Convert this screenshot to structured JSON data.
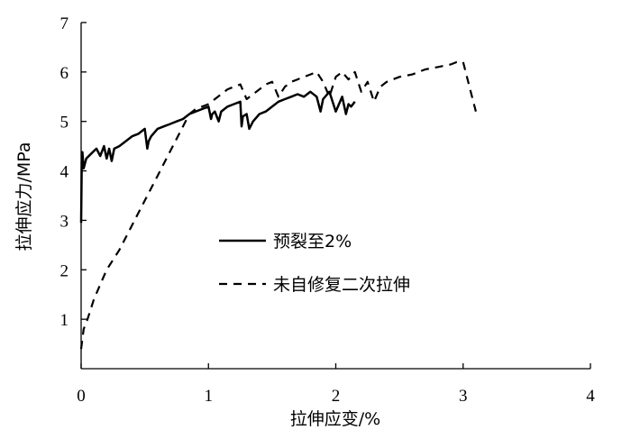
{
  "chart_data": {
    "type": "line",
    "title": "",
    "xlabel": "拉伸应变/%",
    "ylabel": "拉伸应力/MPa",
    "xlim": [
      0,
      4
    ],
    "ylim": [
      0,
      7
    ],
    "xticks": [
      "0",
      "1",
      "2",
      "3",
      "4"
    ],
    "yticks": [
      "1",
      "2",
      "3",
      "4",
      "5",
      "6",
      "7"
    ],
    "grid": false,
    "legend_position": "center",
    "series": [
      {
        "name": "预裂至2%",
        "style": "solid",
        "color": "#000000",
        "x": [
          0.0,
          0.005,
          0.01,
          0.02,
          0.04,
          0.06,
          0.08,
          0.1,
          0.12,
          0.15,
          0.18,
          0.2,
          0.22,
          0.24,
          0.26,
          0.3,
          0.35,
          0.4,
          0.45,
          0.5,
          0.52,
          0.53,
          0.55,
          0.6,
          0.65,
          0.7,
          0.75,
          0.8,
          0.85,
          0.9,
          0.95,
          1.0,
          1.02,
          1.03,
          1.05,
          1.08,
          1.1,
          1.15,
          1.2,
          1.25,
          1.26,
          1.27,
          1.3,
          1.32,
          1.35,
          1.4,
          1.45,
          1.5,
          1.55,
          1.6,
          1.65,
          1.7,
          1.75,
          1.8,
          1.85,
          1.88,
          1.9,
          1.95,
          2.0,
          2.05,
          2.08,
          2.1,
          2.12,
          2.15
        ],
        "values": [
          2.95,
          4.2,
          4.38,
          4.05,
          4.25,
          4.3,
          4.35,
          4.4,
          4.45,
          4.3,
          4.5,
          4.25,
          4.45,
          4.2,
          4.45,
          4.5,
          4.6,
          4.7,
          4.75,
          4.85,
          4.45,
          4.6,
          4.7,
          4.85,
          4.9,
          4.95,
          5.0,
          5.05,
          5.15,
          5.2,
          5.25,
          5.3,
          5.05,
          5.15,
          5.2,
          5.0,
          5.2,
          5.3,
          5.35,
          5.4,
          4.9,
          5.1,
          5.15,
          4.85,
          5.0,
          5.15,
          5.2,
          5.3,
          5.4,
          5.45,
          5.5,
          5.55,
          5.5,
          5.6,
          5.5,
          5.2,
          5.45,
          5.6,
          5.2,
          5.5,
          5.15,
          5.35,
          5.3,
          5.4
        ]
      },
      {
        "name": "未自修复二次拉伸",
        "style": "dashed",
        "color": "#000000",
        "x": [
          0.0,
          0.02,
          0.05,
          0.1,
          0.15,
          0.2,
          0.3,
          0.4,
          0.5,
          0.6,
          0.7,
          0.8,
          0.85,
          0.9,
          0.95,
          1.0,
          1.05,
          1.1,
          1.15,
          1.2,
          1.25,
          1.3,
          1.35,
          1.4,
          1.45,
          1.5,
          1.55,
          1.6,
          1.65,
          1.7,
          1.75,
          1.8,
          1.85,
          1.9,
          1.95,
          2.0,
          2.05,
          2.1,
          2.15,
          2.2,
          2.25,
          2.3,
          2.35,
          2.4,
          2.5,
          2.6,
          2.7,
          2.8,
          2.9,
          2.95,
          3.0,
          3.05,
          3.1
        ],
        "values": [
          0.4,
          0.8,
          1.0,
          1.4,
          1.7,
          2.0,
          2.4,
          2.9,
          3.4,
          3.9,
          4.4,
          4.9,
          5.15,
          5.25,
          5.3,
          5.35,
          5.45,
          5.55,
          5.65,
          5.7,
          5.75,
          5.45,
          5.55,
          5.65,
          5.75,
          5.8,
          5.5,
          5.7,
          5.8,
          5.85,
          5.9,
          5.95,
          6.0,
          5.8,
          5.5,
          5.9,
          6.0,
          5.85,
          6.0,
          5.6,
          5.8,
          5.4,
          5.7,
          5.8,
          5.9,
          5.95,
          6.05,
          6.1,
          6.15,
          6.2,
          6.2,
          5.7,
          5.2
        ]
      }
    ]
  }
}
